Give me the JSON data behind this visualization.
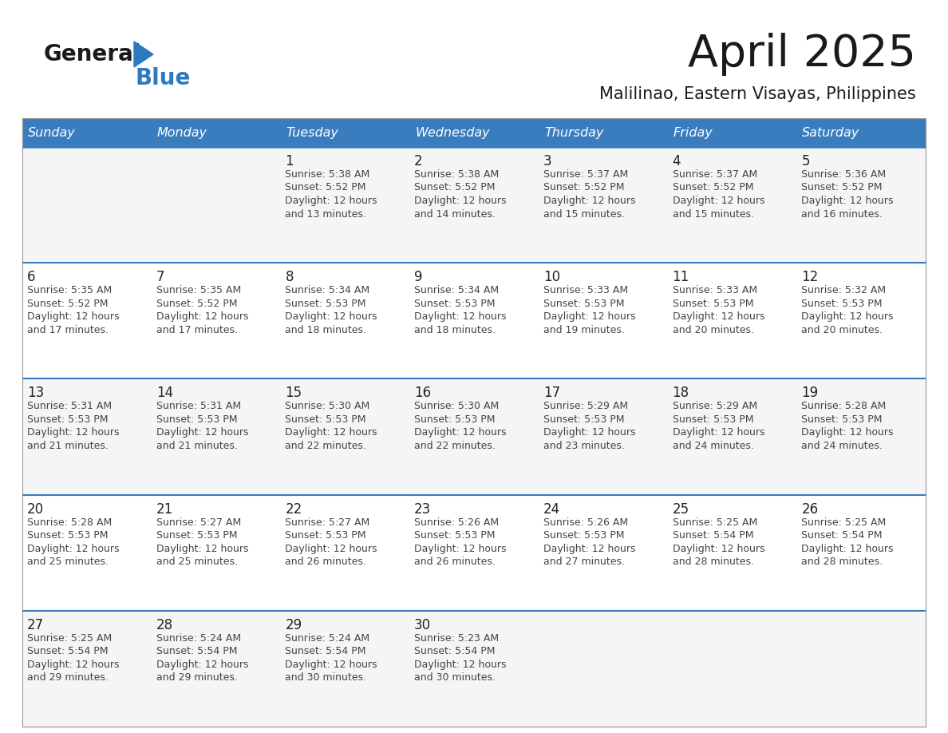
{
  "title": "April 2025",
  "subtitle": "Malilinao, Eastern Visayas, Philippines",
  "header_bg": "#3a7dbf",
  "header_text": "#ffffff",
  "day_names": [
    "Sunday",
    "Monday",
    "Tuesday",
    "Wednesday",
    "Thursday",
    "Friday",
    "Saturday"
  ],
  "cell_bg_odd": "#f5f5f5",
  "cell_bg_even": "#ffffff",
  "separator_color": "#3a7dbf",
  "text_color": "#444444",
  "day_number_color": "#222222",
  "logo_general_color": "#1a1a1a",
  "logo_blue_color": "#2e7abf",
  "logo_triangle_color": "#2e7abf",
  "title_color": "#1a1a1a",
  "subtitle_color": "#1a1a1a",
  "weeks": [
    [
      {
        "day": null,
        "sunrise": null,
        "sunset": null,
        "daylight_hours": null,
        "daylight_minutes": null
      },
      {
        "day": null,
        "sunrise": null,
        "sunset": null,
        "daylight_hours": null,
        "daylight_minutes": null
      },
      {
        "day": 1,
        "sunrise": "5:38 AM",
        "sunset": "5:52 PM",
        "daylight_hours": 12,
        "daylight_minutes": 13
      },
      {
        "day": 2,
        "sunrise": "5:38 AM",
        "sunset": "5:52 PM",
        "daylight_hours": 12,
        "daylight_minutes": 14
      },
      {
        "day": 3,
        "sunrise": "5:37 AM",
        "sunset": "5:52 PM",
        "daylight_hours": 12,
        "daylight_minutes": 15
      },
      {
        "day": 4,
        "sunrise": "5:37 AM",
        "sunset": "5:52 PM",
        "daylight_hours": 12,
        "daylight_minutes": 15
      },
      {
        "day": 5,
        "sunrise": "5:36 AM",
        "sunset": "5:52 PM",
        "daylight_hours": 12,
        "daylight_minutes": 16
      }
    ],
    [
      {
        "day": 6,
        "sunrise": "5:35 AM",
        "sunset": "5:52 PM",
        "daylight_hours": 12,
        "daylight_minutes": 17
      },
      {
        "day": 7,
        "sunrise": "5:35 AM",
        "sunset": "5:52 PM",
        "daylight_hours": 12,
        "daylight_minutes": 17
      },
      {
        "day": 8,
        "sunrise": "5:34 AM",
        "sunset": "5:53 PM",
        "daylight_hours": 12,
        "daylight_minutes": 18
      },
      {
        "day": 9,
        "sunrise": "5:34 AM",
        "sunset": "5:53 PM",
        "daylight_hours": 12,
        "daylight_minutes": 18
      },
      {
        "day": 10,
        "sunrise": "5:33 AM",
        "sunset": "5:53 PM",
        "daylight_hours": 12,
        "daylight_minutes": 19
      },
      {
        "day": 11,
        "sunrise": "5:33 AM",
        "sunset": "5:53 PM",
        "daylight_hours": 12,
        "daylight_minutes": 20
      },
      {
        "day": 12,
        "sunrise": "5:32 AM",
        "sunset": "5:53 PM",
        "daylight_hours": 12,
        "daylight_minutes": 20
      }
    ],
    [
      {
        "day": 13,
        "sunrise": "5:31 AM",
        "sunset": "5:53 PM",
        "daylight_hours": 12,
        "daylight_minutes": 21
      },
      {
        "day": 14,
        "sunrise": "5:31 AM",
        "sunset": "5:53 PM",
        "daylight_hours": 12,
        "daylight_minutes": 21
      },
      {
        "day": 15,
        "sunrise": "5:30 AM",
        "sunset": "5:53 PM",
        "daylight_hours": 12,
        "daylight_minutes": 22
      },
      {
        "day": 16,
        "sunrise": "5:30 AM",
        "sunset": "5:53 PM",
        "daylight_hours": 12,
        "daylight_minutes": 22
      },
      {
        "day": 17,
        "sunrise": "5:29 AM",
        "sunset": "5:53 PM",
        "daylight_hours": 12,
        "daylight_minutes": 23
      },
      {
        "day": 18,
        "sunrise": "5:29 AM",
        "sunset": "5:53 PM",
        "daylight_hours": 12,
        "daylight_minutes": 24
      },
      {
        "day": 19,
        "sunrise": "5:28 AM",
        "sunset": "5:53 PM",
        "daylight_hours": 12,
        "daylight_minutes": 24
      }
    ],
    [
      {
        "day": 20,
        "sunrise": "5:28 AM",
        "sunset": "5:53 PM",
        "daylight_hours": 12,
        "daylight_minutes": 25
      },
      {
        "day": 21,
        "sunrise": "5:27 AM",
        "sunset": "5:53 PM",
        "daylight_hours": 12,
        "daylight_minutes": 25
      },
      {
        "day": 22,
        "sunrise": "5:27 AM",
        "sunset": "5:53 PM",
        "daylight_hours": 12,
        "daylight_minutes": 26
      },
      {
        "day": 23,
        "sunrise": "5:26 AM",
        "sunset": "5:53 PM",
        "daylight_hours": 12,
        "daylight_minutes": 26
      },
      {
        "day": 24,
        "sunrise": "5:26 AM",
        "sunset": "5:53 PM",
        "daylight_hours": 12,
        "daylight_minutes": 27
      },
      {
        "day": 25,
        "sunrise": "5:25 AM",
        "sunset": "5:54 PM",
        "daylight_hours": 12,
        "daylight_minutes": 28
      },
      {
        "day": 26,
        "sunrise": "5:25 AM",
        "sunset": "5:54 PM",
        "daylight_hours": 12,
        "daylight_minutes": 28
      }
    ],
    [
      {
        "day": 27,
        "sunrise": "5:25 AM",
        "sunset": "5:54 PM",
        "daylight_hours": 12,
        "daylight_minutes": 29
      },
      {
        "day": 28,
        "sunrise": "5:24 AM",
        "sunset": "5:54 PM",
        "daylight_hours": 12,
        "daylight_minutes": 29
      },
      {
        "day": 29,
        "sunrise": "5:24 AM",
        "sunset": "5:54 PM",
        "daylight_hours": 12,
        "daylight_minutes": 30
      },
      {
        "day": 30,
        "sunrise": "5:23 AM",
        "sunset": "5:54 PM",
        "daylight_hours": 12,
        "daylight_minutes": 30
      },
      {
        "day": null,
        "sunrise": null,
        "sunset": null,
        "daylight_hours": null,
        "daylight_minutes": null
      },
      {
        "day": null,
        "sunrise": null,
        "sunset": null,
        "daylight_hours": null,
        "daylight_minutes": null
      },
      {
        "day": null,
        "sunrise": null,
        "sunset": null,
        "daylight_hours": null,
        "daylight_minutes": null
      }
    ]
  ]
}
